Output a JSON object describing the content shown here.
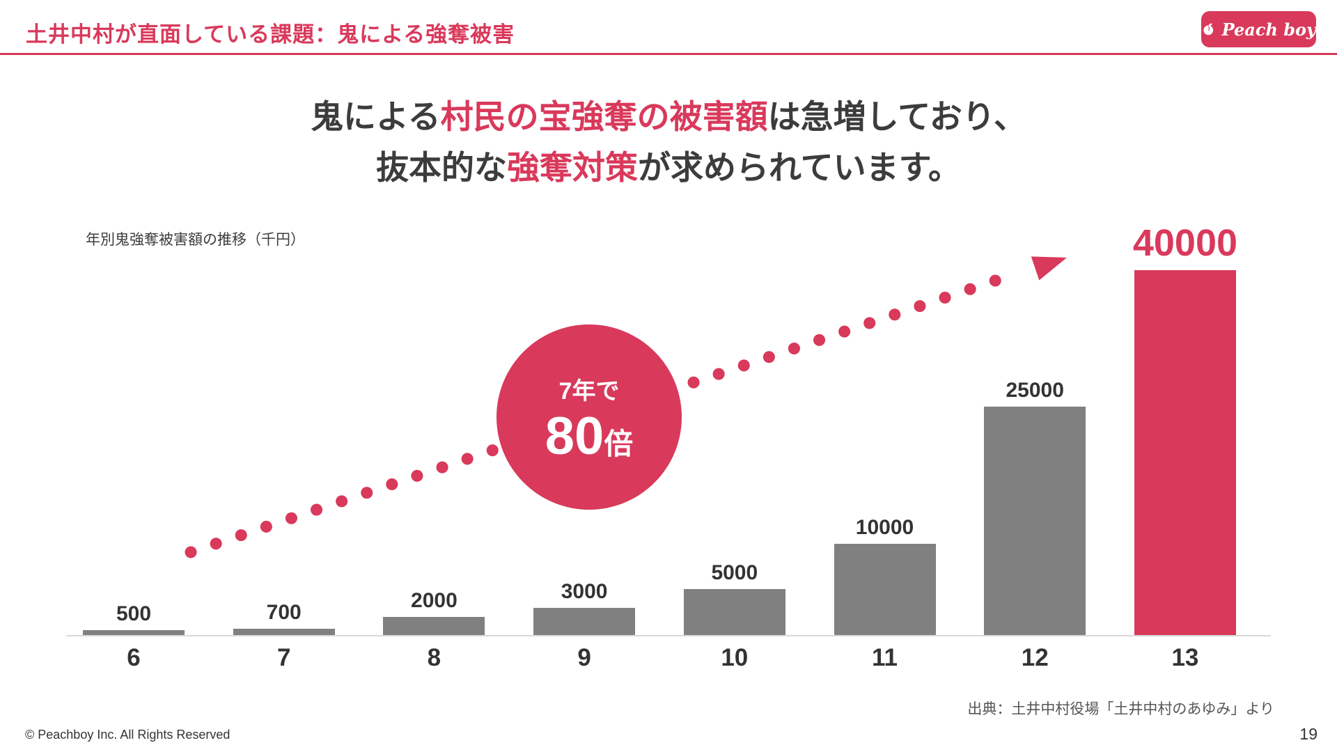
{
  "header": {
    "title": "土井中村が直面している課題：鬼による強奪被害",
    "logo_text": "Peach boy"
  },
  "headline": {
    "line1": {
      "pre": "鬼による",
      "em": "村民の宝強奪の被害額",
      "post": "は急増しており、"
    },
    "line2": {
      "pre": "抜本的な",
      "em": "強奪対策",
      "post": "が求められています。"
    }
  },
  "chart_data": {
    "type": "bar",
    "title": "年別鬼強奪被害額の推移（千円）",
    "categories": [
      "6",
      "7",
      "8",
      "9",
      "10",
      "11",
      "12",
      "13"
    ],
    "values": [
      500,
      700,
      2000,
      3000,
      5000,
      10000,
      25000,
      40000
    ],
    "highlight_index": 7,
    "ylim": [
      0,
      40000
    ],
    "bar_color": "#808080",
    "highlight_color": "#d9395b",
    "grid": "off",
    "annotation": {
      "line1": "7年で",
      "big": "80",
      "unit": "倍"
    }
  },
  "footer": {
    "source": "出典：土井中村役場「土井中村のあゆみ」より",
    "copyright": "© Peachboy Inc. All Rights Reserved",
    "page_number": "19"
  },
  "colors": {
    "accent": "#d9395b",
    "text_dark": "#3c3c3c",
    "bar_gray": "#808080"
  }
}
